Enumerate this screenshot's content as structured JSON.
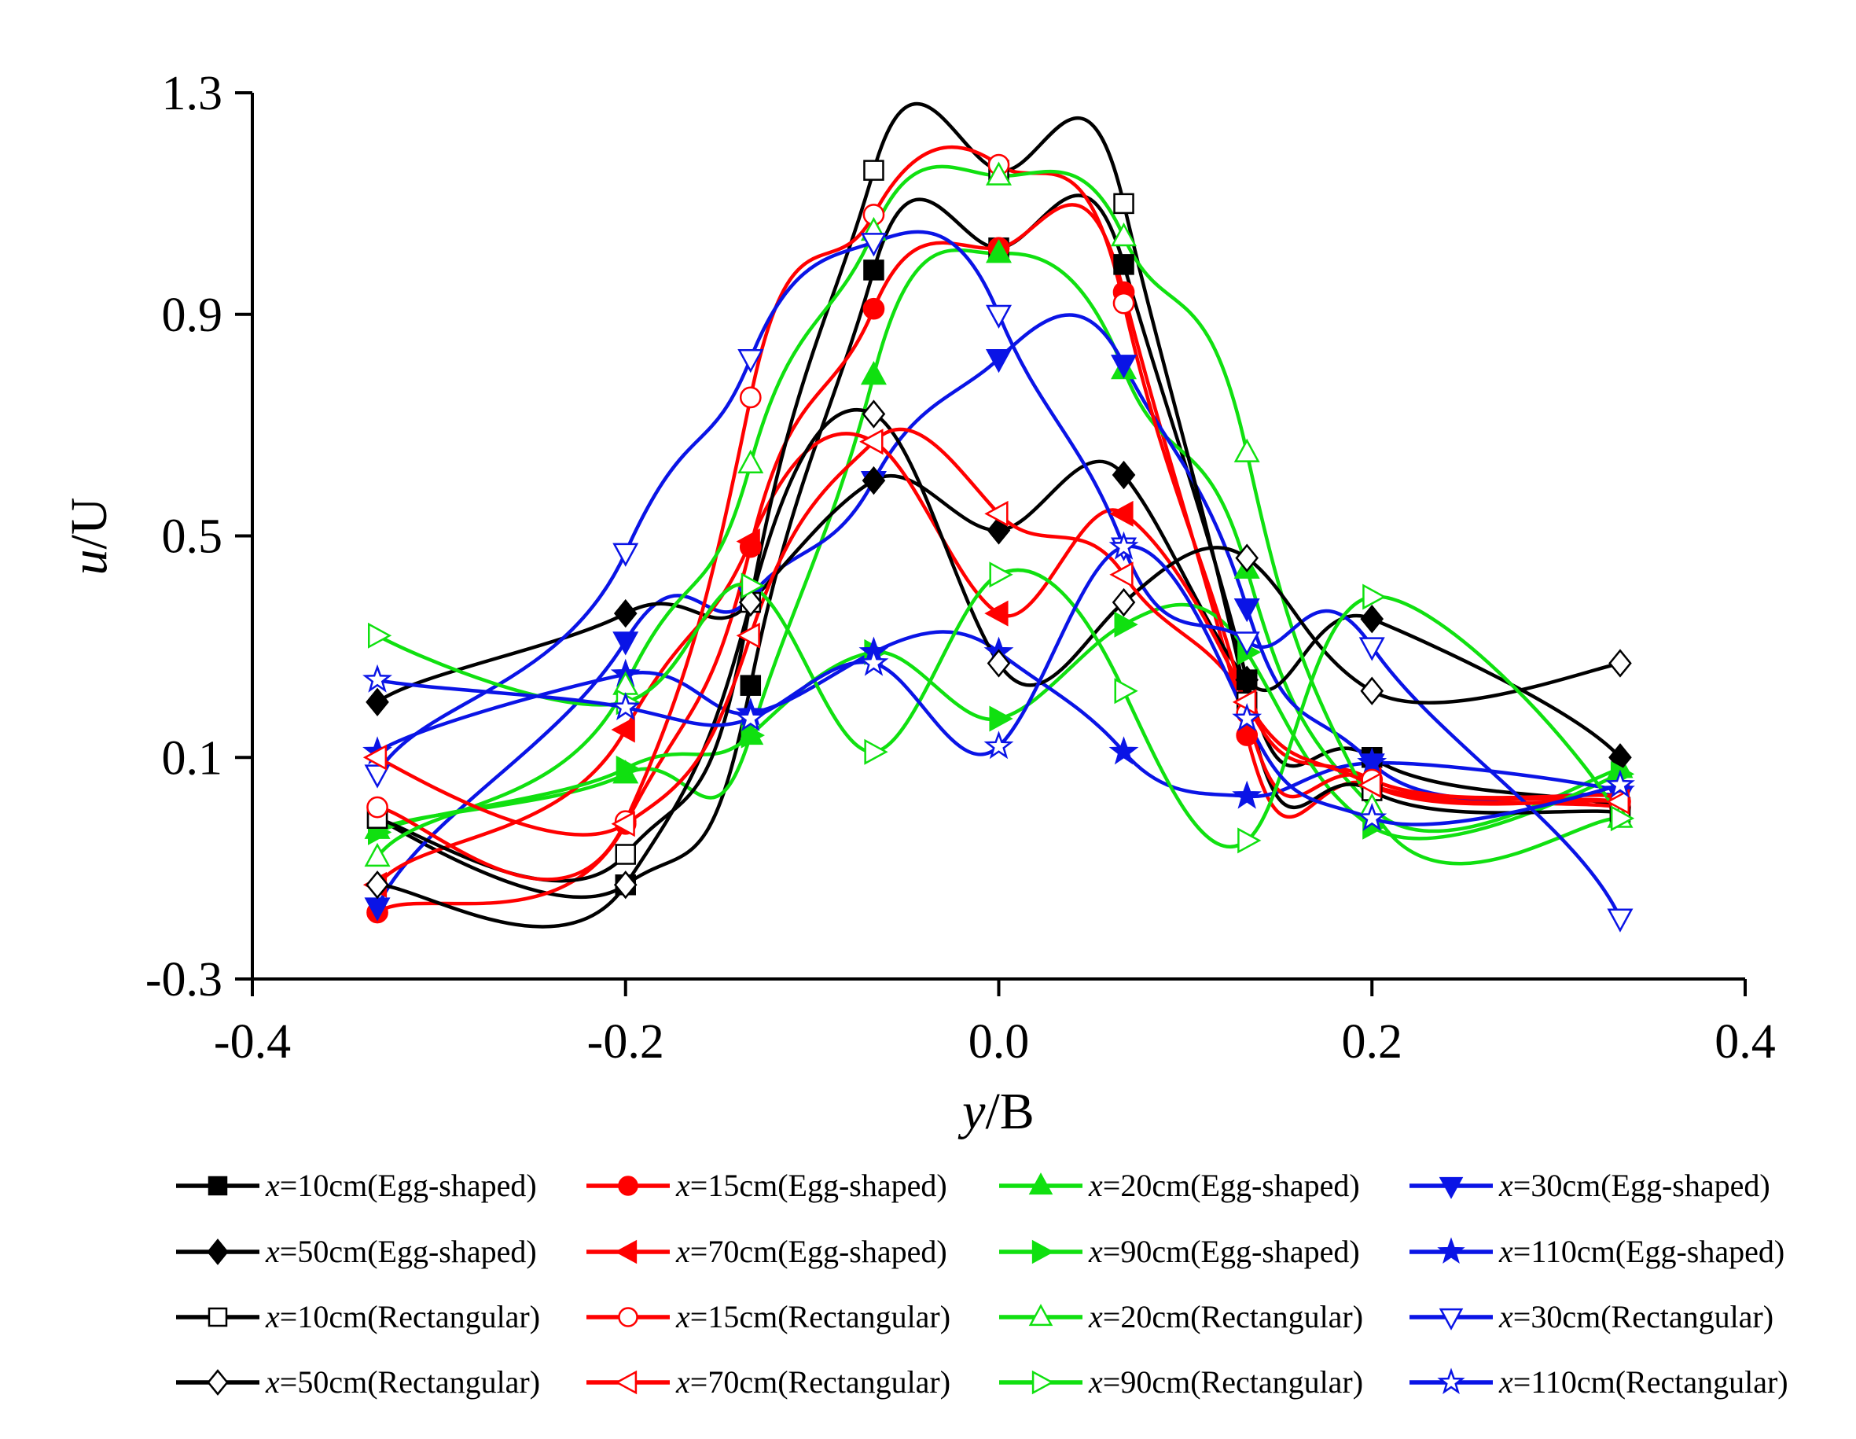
{
  "chart_data": {
    "type": "line",
    "xlabel": "y/B",
    "ylabel": "u/U",
    "xlim": [
      -0.4,
      0.4
    ],
    "ylim": [
      -0.3,
      1.3
    ],
    "xticks": [
      "-0.4",
      "-0.2",
      "0.0",
      "0.2",
      "0.4"
    ],
    "yticks": [
      "-0.3",
      "0.1",
      "0.5",
      "0.9",
      "1.3"
    ],
    "grid": false,
    "legend_position": "bottom",
    "x": [
      -0.333,
      -0.2,
      -0.133,
      -0.067,
      0.0,
      0.067,
      0.133,
      0.2,
      0.333
    ],
    "series": [
      {
        "name": "x=10cm(Egg-shaped)",
        "color": "#000000",
        "marker": "square",
        "filled": true,
        "values": [
          -0.01,
          -0.13,
          0.23,
          0.98,
          1.02,
          0.99,
          0.24,
          0.1,
          0.01
        ]
      },
      {
        "name": "x=15cm(Egg-shaped)",
        "color": "#ff0000",
        "marker": "circle",
        "filled": true,
        "values": [
          -0.18,
          -0.02,
          0.48,
          0.91,
          1.02,
          0.94,
          0.14,
          0.05,
          0.01
        ]
      },
      {
        "name": "x=20cm(Egg-shaped)",
        "color": "#10e010",
        "marker": "triangle-up",
        "filled": true,
        "values": [
          -0.03,
          0.07,
          0.14,
          0.79,
          1.01,
          0.8,
          0.44,
          0.01,
          0.08
        ]
      },
      {
        "name": "x=30cm(Egg-shaped)",
        "color": "#0a14e6",
        "marker": "triangle-down",
        "filled": true,
        "values": [
          -0.17,
          0.31,
          0.39,
          0.6,
          0.82,
          0.81,
          0.37,
          0.09,
          0.03
        ]
      },
      {
        "name": "x=50cm(Egg-shaped)",
        "color": "#000000",
        "marker": "diamond",
        "filled": true,
        "values": [
          0.2,
          0.36,
          0.38,
          0.6,
          0.51,
          0.61,
          0.24,
          0.35,
          0.1
        ]
      },
      {
        "name": "x=70cm(Egg-shaped)",
        "color": "#ff0000",
        "marker": "triangle-left",
        "filled": true,
        "values": [
          -0.13,
          0.15,
          0.49,
          0.67,
          0.36,
          0.54,
          0.2,
          0.06,
          0.03
        ]
      },
      {
        "name": "x=90cm(Egg-shaped)",
        "color": "#10e010",
        "marker": "triangle-right",
        "filled": true,
        "values": [
          -0.035,
          0.08,
          0.14,
          0.29,
          0.17,
          0.34,
          0.29,
          -0.025,
          0.07
        ]
      },
      {
        "name": "x=110cm(Egg-shaped)",
        "color": "#0a14e6",
        "marker": "star",
        "filled": true,
        "values": [
          0.11,
          0.25,
          0.18,
          0.29,
          0.29,
          0.11,
          0.03,
          0.09,
          0.04
        ]
      },
      {
        "name": "x=10cm(Rectangular)",
        "color": "#000000",
        "marker": "square",
        "filled": false,
        "values": [
          -0.01,
          -0.075,
          0.38,
          1.16,
          1.16,
          1.1,
          0.2,
          0.04,
          0.0
        ]
      },
      {
        "name": "x=15cm(Rectangular)",
        "color": "#ff0000",
        "marker": "circle",
        "filled": false,
        "values": [
          0.01,
          -0.015,
          0.75,
          1.08,
          1.17,
          0.92,
          0.18,
          0.06,
          0.02
        ]
      },
      {
        "name": "x=20cm(Rectangular)",
        "color": "#10e010",
        "marker": "triangle-up",
        "filled": false,
        "values": [
          -0.08,
          0.23,
          0.63,
          1.05,
          1.15,
          1.04,
          0.65,
          0.01,
          -0.01
        ]
      },
      {
        "name": "x=30cm(Rectangular)",
        "color": "#0a14e6",
        "marker": "triangle-down",
        "filled": false,
        "values": [
          0.07,
          0.47,
          0.82,
          1.03,
          0.9,
          0.48,
          0.31,
          0.3,
          -0.19
        ]
      },
      {
        "name": "x=50cm(Rectangular)",
        "color": "#000000",
        "marker": "diamond",
        "filled": false,
        "values": [
          -0.13,
          -0.13,
          0.38,
          0.72,
          0.27,
          0.38,
          0.46,
          0.22,
          0.27
        ]
      },
      {
        "name": "x=70cm(Rectangular)",
        "color": "#ff0000",
        "marker": "triangle-left",
        "filled": false,
        "values": [
          0.1,
          -0.02,
          0.32,
          0.67,
          0.54,
          0.43,
          0.2,
          0.05,
          0.02
        ]
      },
      {
        "name": "x=90cm(Rectangular)",
        "color": "#10e010",
        "marker": "triangle-right",
        "filled": false,
        "values": [
          0.32,
          0.2,
          0.41,
          0.11,
          0.43,
          0.22,
          -0.05,
          0.39,
          -0.01
        ]
      },
      {
        "name": "x=110cm(Rectangular)",
        "color": "#0a14e6",
        "marker": "star",
        "filled": false,
        "values": [
          0.24,
          0.19,
          0.17,
          0.27,
          0.12,
          0.48,
          0.17,
          -0.01,
          0.05
        ]
      }
    ]
  }
}
